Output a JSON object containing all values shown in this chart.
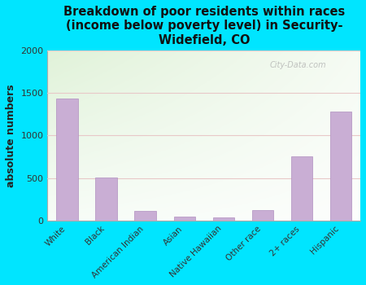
{
  "title": "Breakdown of poor residents within races\n(income below poverty level) in Security-\nWidefield, CO",
  "ylabel": "absolute numbers",
  "categories": [
    "White",
    "Black",
    "American Indian",
    "Asian",
    "Native Hawaiian",
    "Other race",
    "2+ races",
    "Hispanic"
  ],
  "values": [
    1440,
    510,
    110,
    50,
    40,
    120,
    760,
    1280
  ],
  "bar_color": "#c9aed4",
  "bar_edge_color": "#b090c0",
  "ylim": [
    0,
    2000
  ],
  "yticks": [
    0,
    500,
    1000,
    1500,
    2000
  ],
  "background_color": "#00e5ff",
  "watermark": "City-Data.com",
  "title_fontsize": 10.5,
  "ylabel_fontsize": 9
}
